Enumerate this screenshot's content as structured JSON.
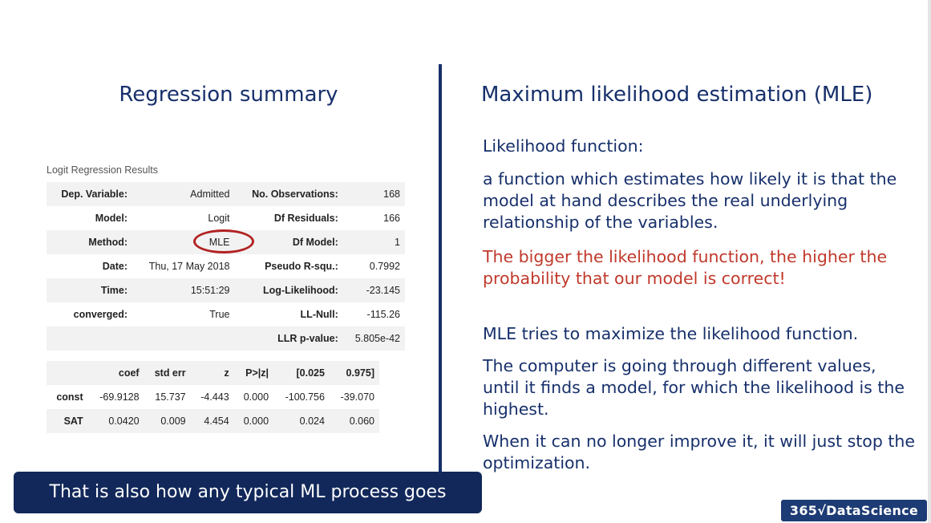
{
  "left_title": "Regression summary",
  "right_title": "Maximum likelihood estimation (MLE)",
  "regression": {
    "caption": "Logit Regression Results",
    "rows": [
      [
        "Dep. Variable:",
        "Admitted",
        "No. Observations:",
        "168"
      ],
      [
        "Model:",
        "Logit",
        "Df Residuals:",
        "166"
      ],
      [
        "Method:",
        "MLE",
        "Df Model:",
        "1"
      ],
      [
        "Date:",
        "Thu, 17 May 2018",
        "Pseudo R-squ.:",
        "0.7992"
      ],
      [
        "Time:",
        "15:51:29",
        "Log-Likelihood:",
        "-23.145"
      ],
      [
        "converged:",
        "True",
        "LL-Null:",
        "-115.26"
      ],
      [
        "",
        "",
        "LLR p-value:",
        "5.805e-42"
      ]
    ],
    "coef_headers": [
      "",
      "coef",
      "std err",
      "z",
      "P>|z|",
      "[0.025",
      "0.975]"
    ],
    "coef_rows": [
      [
        "const",
        "-69.9128",
        "15.737",
        "-4.443",
        "0.000",
        "-100.756",
        "-39.070"
      ],
      [
        "SAT",
        "0.0420",
        "0.009",
        "4.454",
        "0.000",
        "0.024",
        "0.060"
      ]
    ]
  },
  "right_text": {
    "heading": "Likelihood function:",
    "definition": "a function which estimates how likely it is that the model at hand describes the real underlying relationship of the variables.",
    "emphasis": "The bigger the likelihood function, the higher the probability that our model is correct!",
    "p1": "MLE tries to maximize the likelihood function.",
    "p2": "The computer is going through different values, until it finds a model, for which the likelihood is the highest.",
    "p3": "When it can no longer improve it, it will just stop the optimization."
  },
  "caption_bar": "That is also how any typical ML process goes",
  "logo_text": "365√DataScience",
  "colors": {
    "navy": "#17306b",
    "red": "#c0392b",
    "caption_bg": "#12285a"
  }
}
